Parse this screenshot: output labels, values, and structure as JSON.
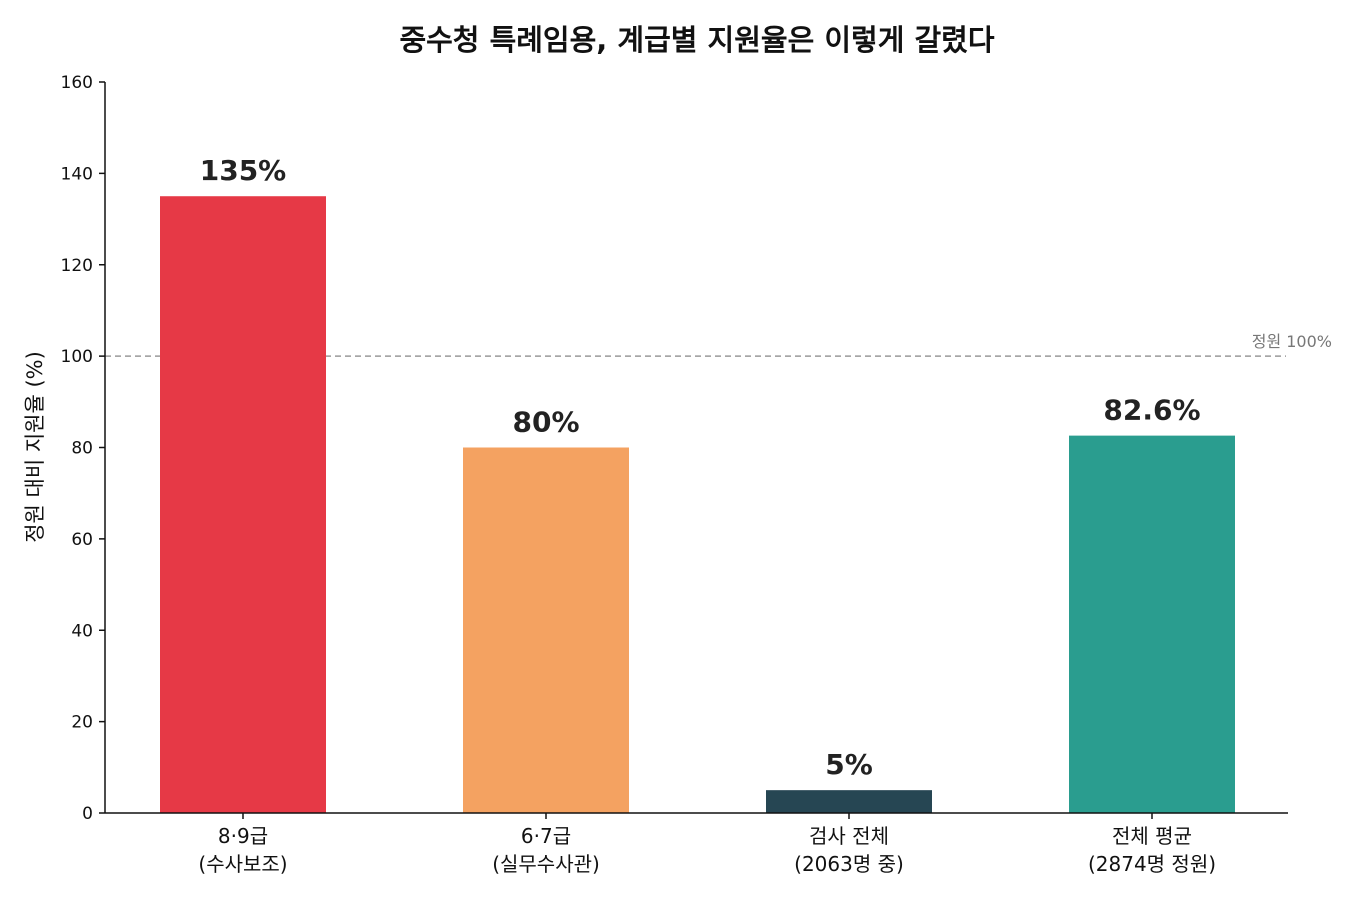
{
  "chart_data": {
    "type": "bar",
    "title": "중수청 특례임용, 계급별 지원율은 이렇게 갈렸다",
    "xlabel": "",
    "ylabel": "정원 대비 지원율 (%)",
    "ylim": [
      0,
      160
    ],
    "yticks": [
      0,
      20,
      40,
      60,
      80,
      100,
      120,
      140,
      160
    ],
    "grid": false,
    "categories": [
      {
        "line1": "8·9급",
        "line2": "(수사보조)"
      },
      {
        "line1": "6·7급",
        "line2": "(실무수사관)"
      },
      {
        "line1": "검사 전체",
        "line2": "(2063명 중)"
      },
      {
        "line1": "전체 평균",
        "line2": "(2874명 정원)"
      }
    ],
    "values": [
      135,
      80,
      5,
      82.6
    ],
    "data_labels": [
      "135%",
      "80%",
      "5%",
      "82.6%"
    ],
    "colors": [
      "#e63946",
      "#f4a261",
      "#264653",
      "#2a9d8f"
    ],
    "reference_line": {
      "value": 100,
      "label": "정원 100%",
      "color": "#999999"
    }
  }
}
